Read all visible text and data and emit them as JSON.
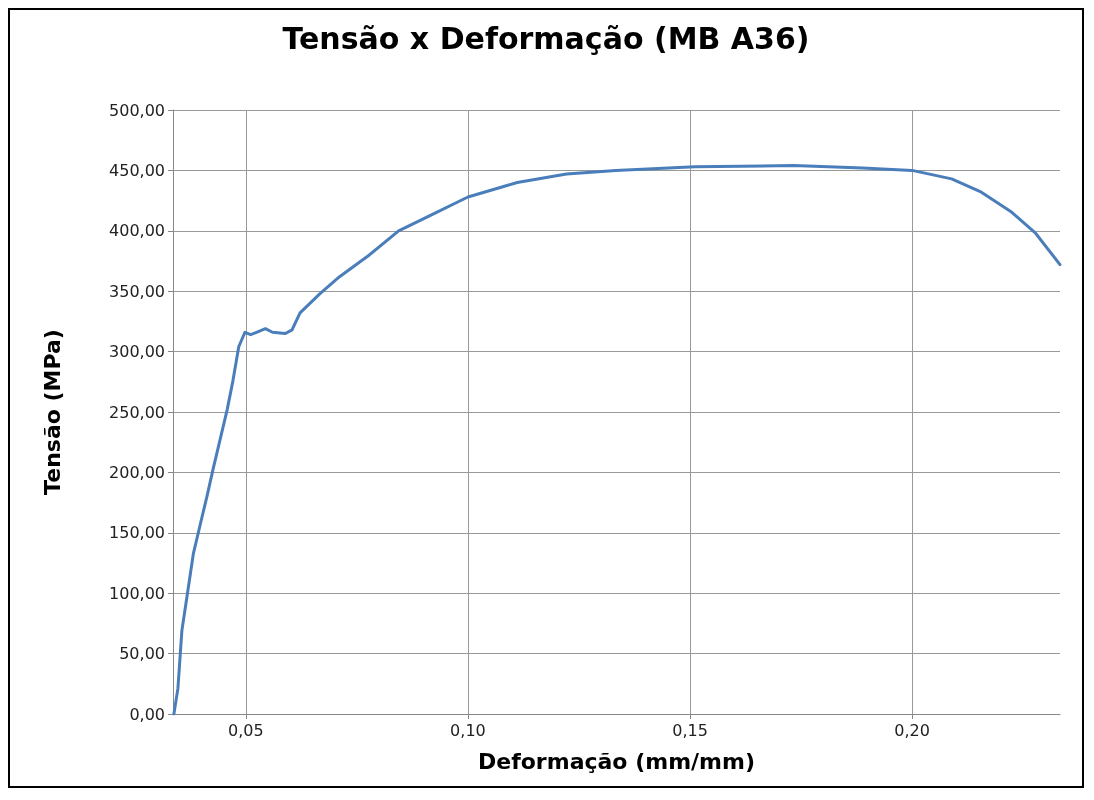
{
  "chart_data": {
    "type": "line",
    "title": "Tensão x Deformação (MB A36)",
    "xlabel": "Deformação (mm/mm)",
    "ylabel": "Tensão (MPa)",
    "series": [
      {
        "color": "#4a7ebb",
        "x": [
          0.0338,
          0.0347,
          0.0356,
          0.0369,
          0.0382,
          0.04,
          0.0413,
          0.0427,
          0.044,
          0.0458,
          0.0471,
          0.0484,
          0.0498,
          0.0511,
          0.0524,
          0.0544,
          0.056,
          0.0589,
          0.0604,
          0.0622,
          0.0667,
          0.0711,
          0.0778,
          0.0844,
          0.0911,
          0.1,
          0.1111,
          0.1222,
          0.1333,
          0.1511,
          0.1733,
          0.1889,
          0.2,
          0.2089,
          0.2156,
          0.2222,
          0.2278,
          0.2333
        ],
        "values": [
          0,
          21,
          69,
          101,
          133,
          161,
          181,
          204,
          224,
          252,
          276,
          304,
          316,
          314,
          316,
          319,
          316,
          315,
          318,
          332,
          348,
          362,
          380,
          400,
          412,
          428,
          440,
          447,
          450,
          453,
          454,
          452,
          450,
          443,
          432,
          416,
          398,
          372
        ]
      }
    ],
    "xlim": [
      0.0336,
      0.2333
    ],
    "xticks": [
      {
        "value": 0.05,
        "label": "0,05"
      },
      {
        "value": 0.1,
        "label": "0,10"
      },
      {
        "value": 0.15,
        "label": "0,15"
      },
      {
        "value": 0.2,
        "label": "0,20"
      }
    ],
    "ylim": [
      0,
      500
    ],
    "yticks": [
      {
        "value": 0,
        "label": "0,00"
      },
      {
        "value": 50,
        "label": "50,00"
      },
      {
        "value": 100,
        "label": "100,00"
      },
      {
        "value": 150,
        "label": "150,00"
      },
      {
        "value": 200,
        "label": "200,00"
      },
      {
        "value": 250,
        "label": "250,00"
      },
      {
        "value": 300,
        "label": "300,00"
      },
      {
        "value": 350,
        "label": "350,00"
      },
      {
        "value": 400,
        "label": "400,00"
      },
      {
        "value": 450,
        "label": "450,00"
      },
      {
        "value": 500,
        "label": "500,00"
      }
    ],
    "grid": true,
    "marker": "none",
    "line_style": "solid"
  }
}
